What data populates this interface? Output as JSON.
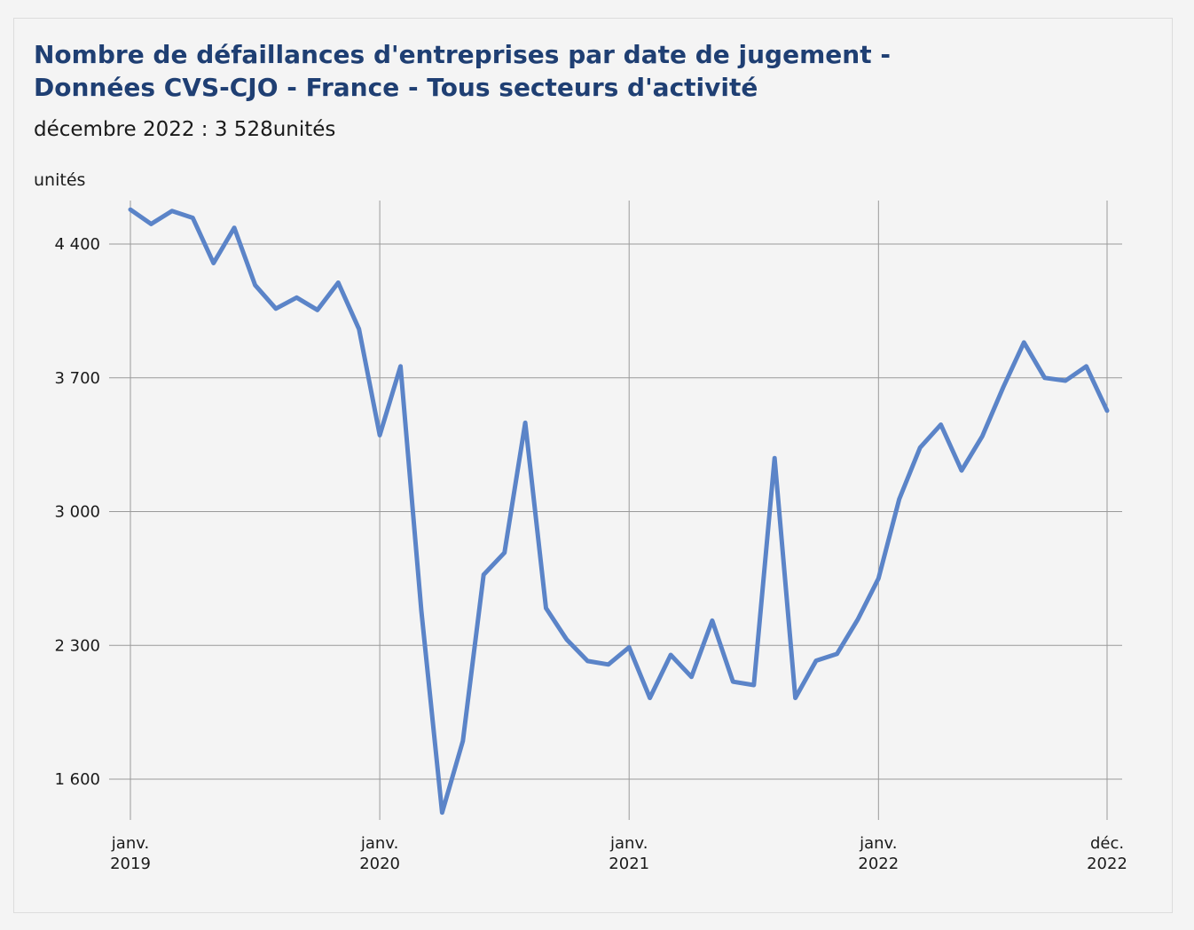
{
  "chart_data": {
    "type": "line",
    "title_line1": "Nombre de défaillances d'entreprises par date de jugement -",
    "title_line2": "Données CVS-CJO - France - Tous secteurs d'activité",
    "subtitle": "décembre 2022 : 3 528unités",
    "ylabel": "unités",
    "ylim": [
      1440,
      4620
    ],
    "y_ticks": [
      {
        "value": 1600,
        "label": "1 600"
      },
      {
        "value": 2300,
        "label": "2 300"
      },
      {
        "value": 3000,
        "label": "3 000"
      },
      {
        "value": 3700,
        "label": "3 700"
      },
      {
        "value": 4400,
        "label": "4 400"
      }
    ],
    "x_ticks": [
      {
        "date": "2019-01",
        "line1": "janv.",
        "line2": "2019"
      },
      {
        "date": "2020-01",
        "line1": "janv.",
        "line2": "2020"
      },
      {
        "date": "2021-01",
        "line1": "janv.",
        "line2": "2021"
      },
      {
        "date": "2022-01",
        "line1": "janv.",
        "line2": "2022"
      },
      {
        "date": "2022-12",
        "line1": "déc.",
        "line2": "2022"
      }
    ],
    "grid": true,
    "line_color": "#5b84c8",
    "series": [
      {
        "x": [
          "2019-01",
          "2019-02",
          "2019-03",
          "2019-04",
          "2019-05",
          "2019-06",
          "2019-07",
          "2019-08",
          "2019-09",
          "2019-10",
          "2019-11",
          "2019-12",
          "2020-01",
          "2020-02",
          "2020-03",
          "2020-04",
          "2020-05",
          "2020-06",
          "2020-07",
          "2020-08",
          "2020-09",
          "2020-10",
          "2020-11",
          "2020-12",
          "2021-01",
          "2021-02",
          "2021-03",
          "2021-04",
          "2021-05",
          "2021-06",
          "2021-07",
          "2021-08",
          "2021-09",
          "2021-10",
          "2021-11",
          "2021-12",
          "2022-01",
          "2022-02",
          "2022-03",
          "2022-04",
          "2022-05",
          "2022-06",
          "2022-07",
          "2022-08",
          "2022-09",
          "2022-10",
          "2022-11",
          "2022-12"
        ],
        "values": [
          4580,
          4505,
          4573,
          4537,
          4300,
          4485,
          4185,
          4062,
          4120,
          4055,
          4198,
          3955,
          3400,
          3760,
          2480,
          1425,
          1800,
          2670,
          2785,
          3465,
          2495,
          2330,
          2218,
          2200,
          2290,
          2025,
          2250,
          2135,
          2430,
          2110,
          2092,
          3280,
          2025,
          2220,
          2255,
          2435,
          2650,
          3065,
          3335,
          3455,
          3215,
          3395,
          3650,
          3885,
          3700,
          3685,
          3760,
          3528
        ]
      }
    ]
  }
}
